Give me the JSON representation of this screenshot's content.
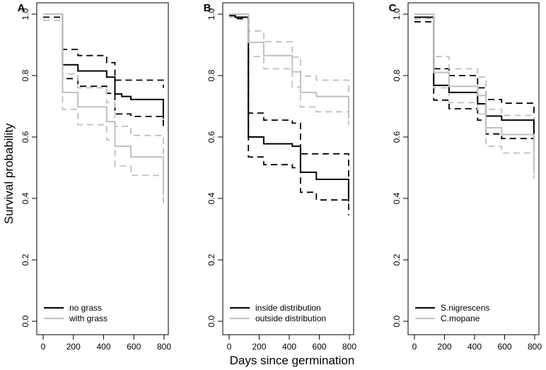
{
  "figure": {
    "ylabel": "Survival probability",
    "xlabel": "Days since germination"
  },
  "chart_data": [
    {
      "type": "line",
      "panel_label": "A",
      "xlim": [
        0,
        800
      ],
      "ylim": [
        0,
        1
      ],
      "xticks": [
        "0",
        "200",
        "400",
        "600",
        "800"
      ],
      "yticks": [
        "0.0",
        "0.2",
        "0.4",
        "0.6",
        "0.8",
        "1.0"
      ],
      "legend_position": "bottom-left",
      "series": [
        {
          "name": "no grass",
          "color": "#000000",
          "x": [
            0,
            128,
            128,
            230,
            230,
            420,
            420,
            475,
            475,
            520,
            520,
            580,
            580,
            795,
            795
          ],
          "y": [
            1.0,
            1.0,
            0.835,
            0.835,
            0.815,
            0.815,
            0.795,
            0.795,
            0.74,
            0.74,
            0.732,
            0.732,
            0.722,
            0.722,
            0.66
          ],
          "ci_upper": {
            "x": [
              0,
              128,
              128,
              230,
              230,
              420,
              420,
              475,
              475,
              795,
              795
            ],
            "y": [
              1.0,
              1.0,
              0.885,
              0.885,
              0.865,
              0.865,
              0.842,
              0.842,
              0.785,
              0.785,
              0.76
            ]
          },
          "ci_lower": {
            "x": [
              0,
              128,
              128,
              230,
              230,
              420,
              420,
              475,
              475,
              580,
              580,
              795,
              795
            ],
            "y": [
              0.99,
              0.99,
              0.79,
              0.79,
              0.765,
              0.765,
              0.742,
              0.742,
              0.675,
              0.675,
              0.667,
              0.667,
              0.63
            ]
          }
        },
        {
          "name": "with grass",
          "color": "#bfbfbf",
          "x": [
            0,
            128,
            128,
            230,
            230,
            420,
            420,
            475,
            475,
            580,
            580,
            795,
            795
          ],
          "y": [
            1.0,
            1.0,
            0.745,
            0.745,
            0.698,
            0.698,
            0.65,
            0.65,
            0.57,
            0.57,
            0.535,
            0.535,
            0.41
          ],
          "ci_upper": {
            "x": [
              0,
              128,
              128,
              230,
              230,
              420,
              420,
              475,
              475,
              580,
              580,
              795,
              795
            ],
            "y": [
              1.0,
              1.0,
              0.805,
              0.805,
              0.76,
              0.76,
              0.712,
              0.712,
              0.635,
              0.635,
              0.605,
              0.605,
              0.48
            ]
          },
          "ci_lower": {
            "x": [
              0,
              128,
              128,
              230,
              230,
              420,
              420,
              475,
              475,
              580,
              580,
              795,
              795
            ],
            "y": [
              0.98,
              0.98,
              0.69,
              0.69,
              0.64,
              0.64,
              0.59,
              0.59,
              0.505,
              0.505,
              0.475,
              0.475,
              0.38
            ]
          }
        }
      ]
    },
    {
      "type": "line",
      "panel_label": "B",
      "xlim": [
        0,
        800
      ],
      "ylim": [
        0,
        1
      ],
      "xticks": [
        "0",
        "200",
        "400",
        "600",
        "800"
      ],
      "yticks": [
        "0.0",
        "0.2",
        "0.4",
        "0.6",
        "0.8",
        "1.0"
      ],
      "legend_position": "bottom-left",
      "series": [
        {
          "name": "inside distribution",
          "color": "#000000",
          "x": [
            0,
            40,
            40,
            128,
            128,
            230,
            230,
            420,
            420,
            475,
            475,
            580,
            580,
            795,
            795
          ],
          "y": [
            1.0,
            1.0,
            0.99,
            0.99,
            0.6,
            0.6,
            0.578,
            0.578,
            0.57,
            0.57,
            0.485,
            0.485,
            0.462,
            0.462,
            0.39
          ],
          "ci_upper": {
            "x": [
              0,
              128,
              128,
              230,
              230,
              420,
              420,
              475,
              475,
              795,
              795
            ],
            "y": [
              1.0,
              1.0,
              0.678,
              0.678,
              0.655,
              0.655,
              0.645,
              0.645,
              0.545,
              0.545,
              0.455
            ]
          },
          "ci_lower": {
            "x": [
              0,
              40,
              40,
              128,
              128,
              230,
              230,
              420,
              420,
              475,
              475,
              580,
              580,
              795,
              795
            ],
            "y": [
              0.995,
              0.995,
              0.985,
              0.985,
              0.535,
              0.535,
              0.51,
              0.51,
              0.5,
              0.5,
              0.42,
              0.42,
              0.395,
              0.395,
              0.345
            ]
          }
        },
        {
          "name": "outside distribution",
          "color": "#bfbfbf",
          "x": [
            0,
            128,
            128,
            230,
            230,
            420,
            420,
            475,
            475,
            580,
            580,
            795,
            795
          ],
          "y": [
            1.0,
            1.0,
            0.908,
            0.908,
            0.865,
            0.865,
            0.812,
            0.812,
            0.745,
            0.745,
            0.732,
            0.732,
            0.66
          ],
          "ci_upper": {
            "x": [
              0,
              128,
              128,
              230,
              230,
              420,
              420,
              475,
              475,
              580,
              580,
              795,
              795
            ],
            "y": [
              1.0,
              1.0,
              0.945,
              0.945,
              0.91,
              0.91,
              0.86,
              0.86,
              0.798,
              0.798,
              0.785,
              0.785,
              0.74
            ]
          },
          "ci_lower": {
            "x": [
              0,
              128,
              128,
              230,
              230,
              420,
              420,
              475,
              475,
              580,
              580,
              795,
              795
            ],
            "y": [
              0.99,
              0.99,
              0.862,
              0.862,
              0.822,
              0.822,
              0.762,
              0.762,
              0.698,
              0.698,
              0.682,
              0.682,
              0.64
            ]
          }
        }
      ]
    },
    {
      "type": "line",
      "panel_label": "C",
      "xlim": [
        0,
        800
      ],
      "ylim": [
        0,
        1
      ],
      "xticks": [
        "0",
        "200",
        "400",
        "600",
        "800"
      ],
      "yticks": [
        "0.0",
        "0.2",
        "0.4",
        "0.6",
        "0.8",
        "1.0"
      ],
      "legend_position": "bottom-left",
      "series": [
        {
          "name": "S.nigrescens",
          "color": "#000000",
          "x": [
            0,
            128,
            128,
            230,
            230,
            420,
            420,
            475,
            475,
            580,
            580,
            795,
            795
          ],
          "y": [
            0.99,
            0.99,
            0.768,
            0.768,
            0.745,
            0.745,
            0.708,
            0.708,
            0.668,
            0.668,
            0.655,
            0.655,
            0.595
          ],
          "ci_upper": {
            "x": [
              0,
              128,
              128,
              230,
              230,
              420,
              420,
              475,
              475,
              580,
              580,
              795,
              795
            ],
            "y": [
              1.0,
              1.0,
              0.822,
              0.822,
              0.8,
              0.8,
              0.76,
              0.76,
              0.722,
              0.722,
              0.71,
              0.71,
              0.64
            ]
          },
          "ci_lower": {
            "x": [
              0,
              128,
              128,
              230,
              230,
              420,
              420,
              475,
              475,
              580,
              580,
              795,
              795
            ],
            "y": [
              0.975,
              0.975,
              0.72,
              0.72,
              0.692,
              0.692,
              0.655,
              0.655,
              0.61,
              0.61,
              0.595,
              0.595,
              0.52
            ]
          }
        },
        {
          "name": "C.mopane",
          "color": "#bfbfbf",
          "x": [
            0,
            128,
            128,
            230,
            230,
            420,
            420,
            475,
            475,
            580,
            580,
            795,
            795
          ],
          "y": [
            1.0,
            1.0,
            0.81,
            0.81,
            0.765,
            0.765,
            0.735,
            0.735,
            0.63,
            0.63,
            0.608,
            0.608,
            0.48
          ],
          "ci_upper": {
            "x": [
              0,
              128,
              128,
              230,
              230,
              420,
              420,
              475,
              475,
              580,
              580,
              795,
              795
            ],
            "y": [
              1.0,
              1.0,
              0.862,
              0.862,
              0.822,
              0.822,
              0.795,
              0.795,
              0.69,
              0.69,
              0.67,
              0.67,
              0.56
            ]
          },
          "ci_lower": {
            "x": [
              0,
              128,
              128,
              230,
              230,
              420,
              420,
              475,
              475,
              580,
              580,
              795,
              795
            ],
            "y": [
              0.985,
              0.985,
              0.76,
              0.76,
              0.712,
              0.712,
              0.675,
              0.675,
              0.57,
              0.57,
              0.548,
              0.548,
              0.465
            ]
          }
        }
      ]
    }
  ]
}
